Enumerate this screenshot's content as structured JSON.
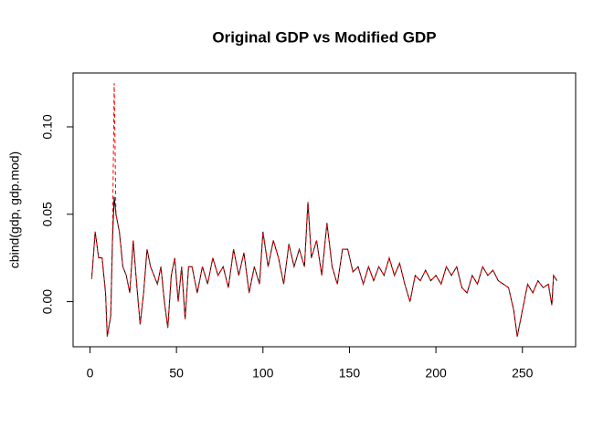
{
  "chart_data": {
    "type": "line",
    "title": "Original GDP vs Modified GDP",
    "y_label": "cbind(gdp, gdp.mod)",
    "x": [
      1,
      3,
      5,
      7,
      9,
      10,
      12,
      13,
      14,
      15,
      17,
      19,
      21,
      23,
      25,
      27,
      29,
      31,
      33,
      35,
      37,
      39,
      41,
      43,
      45,
      47,
      49,
      51,
      53,
      55,
      57,
      59,
      62,
      65,
      68,
      71,
      74,
      77,
      80,
      83,
      86,
      89,
      92,
      95,
      98,
      100,
      103,
      106,
      109,
      112,
      115,
      118,
      121,
      124,
      126,
      128,
      131,
      134,
      137,
      140,
      143,
      146,
      149,
      152,
      155,
      158,
      161,
      164,
      167,
      170,
      173,
      176,
      179,
      182,
      185,
      188,
      191,
      194,
      197,
      200,
      203,
      206,
      209,
      212,
      215,
      218,
      221,
      224,
      227,
      230,
      233,
      236,
      239,
      242,
      245,
      247,
      249,
      251,
      253,
      256,
      259,
      262,
      265,
      267,
      268,
      270
    ],
    "series": [
      {
        "color": "#000000",
        "dash": false,
        "values": [
          0.013,
          0.04,
          0.025,
          0.025,
          0.005,
          -0.02,
          -0.008,
          0.035,
          0.06,
          0.05,
          0.04,
          0.02,
          0.015,
          0.005,
          0.035,
          0.01,
          -0.013,
          0.005,
          0.03,
          0.02,
          0.015,
          0.01,
          0.02,
          0.0,
          -0.015,
          0.015,
          0.025,
          0.0,
          0.02,
          -0.01,
          0.02,
          0.02,
          0.005,
          0.02,
          0.01,
          0.025,
          0.015,
          0.02,
          0.008,
          0.03,
          0.015,
          0.028,
          0.005,
          0.02,
          0.01,
          0.04,
          0.02,
          0.035,
          0.025,
          0.01,
          0.033,
          0.02,
          0.03,
          0.02,
          0.057,
          0.025,
          0.035,
          0.015,
          0.045,
          0.02,
          0.01,
          0.03,
          0.03,
          0.017,
          0.02,
          0.01,
          0.02,
          0.012,
          0.02,
          0.015,
          0.025,
          0.015,
          0.022,
          0.01,
          0.0,
          0.015,
          0.012,
          0.018,
          0.012,
          0.015,
          0.01,
          0.02,
          0.015,
          0.02,
          0.008,
          0.005,
          0.015,
          0.01,
          0.02,
          0.015,
          0.018,
          0.012,
          0.01,
          0.008,
          -0.005,
          -0.02,
          -0.01,
          0.0,
          0.01,
          0.005,
          0.012,
          0.008,
          0.01,
          -0.002,
          0.015,
          0.012
        ]
      },
      {
        "color": "#ff0000",
        "dash": true,
        "values": [
          0.013,
          0.04,
          0.025,
          0.025,
          0.005,
          -0.02,
          -0.008,
          0.035,
          0.125,
          0.05,
          0.04,
          0.02,
          0.015,
          0.005,
          0.035,
          0.01,
          -0.013,
          0.005,
          0.03,
          0.02,
          0.015,
          0.01,
          0.02,
          0.0,
          -0.015,
          0.015,
          0.025,
          0.0,
          0.02,
          -0.01,
          0.02,
          0.02,
          0.005,
          0.02,
          0.01,
          0.025,
          0.015,
          0.02,
          0.008,
          0.03,
          0.015,
          0.028,
          0.005,
          0.02,
          0.01,
          0.04,
          0.02,
          0.035,
          0.025,
          0.01,
          0.033,
          0.02,
          0.03,
          0.02,
          0.057,
          0.025,
          0.035,
          0.015,
          0.045,
          0.02,
          0.01,
          0.03,
          0.03,
          0.017,
          0.02,
          0.01,
          0.02,
          0.012,
          0.02,
          0.015,
          0.025,
          0.015,
          0.022,
          0.01,
          0.0,
          0.015,
          0.012,
          0.018,
          0.012,
          0.015,
          0.01,
          0.02,
          0.015,
          0.02,
          0.008,
          0.005,
          0.015,
          0.01,
          0.02,
          0.015,
          0.018,
          0.012,
          0.01,
          0.008,
          -0.005,
          -0.02,
          -0.01,
          0.0,
          0.01,
          0.005,
          0.012,
          0.008,
          0.01,
          -0.002,
          0.015,
          0.012
        ]
      }
    ],
    "xlim": [
      -9.76,
      280.76
    ],
    "ylim": [
      -0.0258,
      0.1308
    ],
    "xticks": [
      0,
      50,
      100,
      150,
      200,
      250
    ],
    "yticks": [
      {
        "value": 0,
        "label": "0.00"
      },
      {
        "value": 0.05,
        "label": "0.05"
      },
      {
        "value": 0.1,
        "label": "0.10"
      }
    ]
  }
}
